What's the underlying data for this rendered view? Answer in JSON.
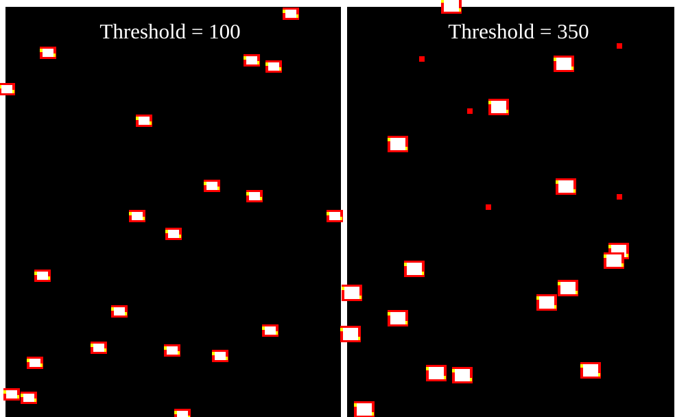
{
  "panels": [
    {
      "title": "Threshold = 100"
    },
    {
      "title": "Threshold = 350"
    }
  ]
}
